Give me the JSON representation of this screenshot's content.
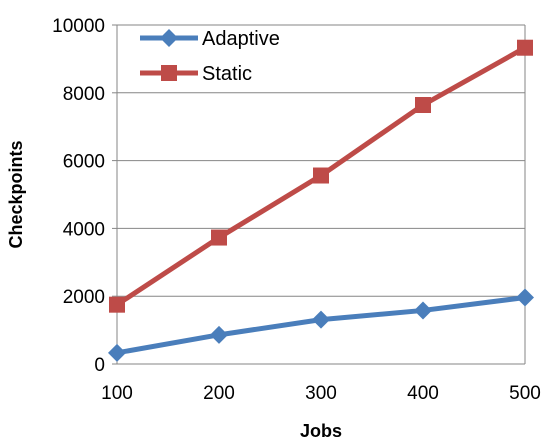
{
  "chart_data": {
    "type": "line",
    "x": [
      100,
      200,
      300,
      400,
      500
    ],
    "xlabel": "Jobs",
    "ylabel": "Checkpoints",
    "ylim": [
      0,
      10000
    ],
    "yticks": [
      0,
      2000,
      4000,
      6000,
      8000,
      10000
    ],
    "grid": "horizontal",
    "legend_position": "top-left",
    "series": [
      {
        "name": "Adaptive",
        "color": "#4A7EBB",
        "marker": "diamond",
        "values": [
          330,
          860,
          1310,
          1580,
          1960
        ]
      },
      {
        "name": "Static",
        "color": "#BE4B48",
        "marker": "square",
        "values": [
          1750,
          3730,
          5560,
          7640,
          9330
        ]
      }
    ]
  }
}
